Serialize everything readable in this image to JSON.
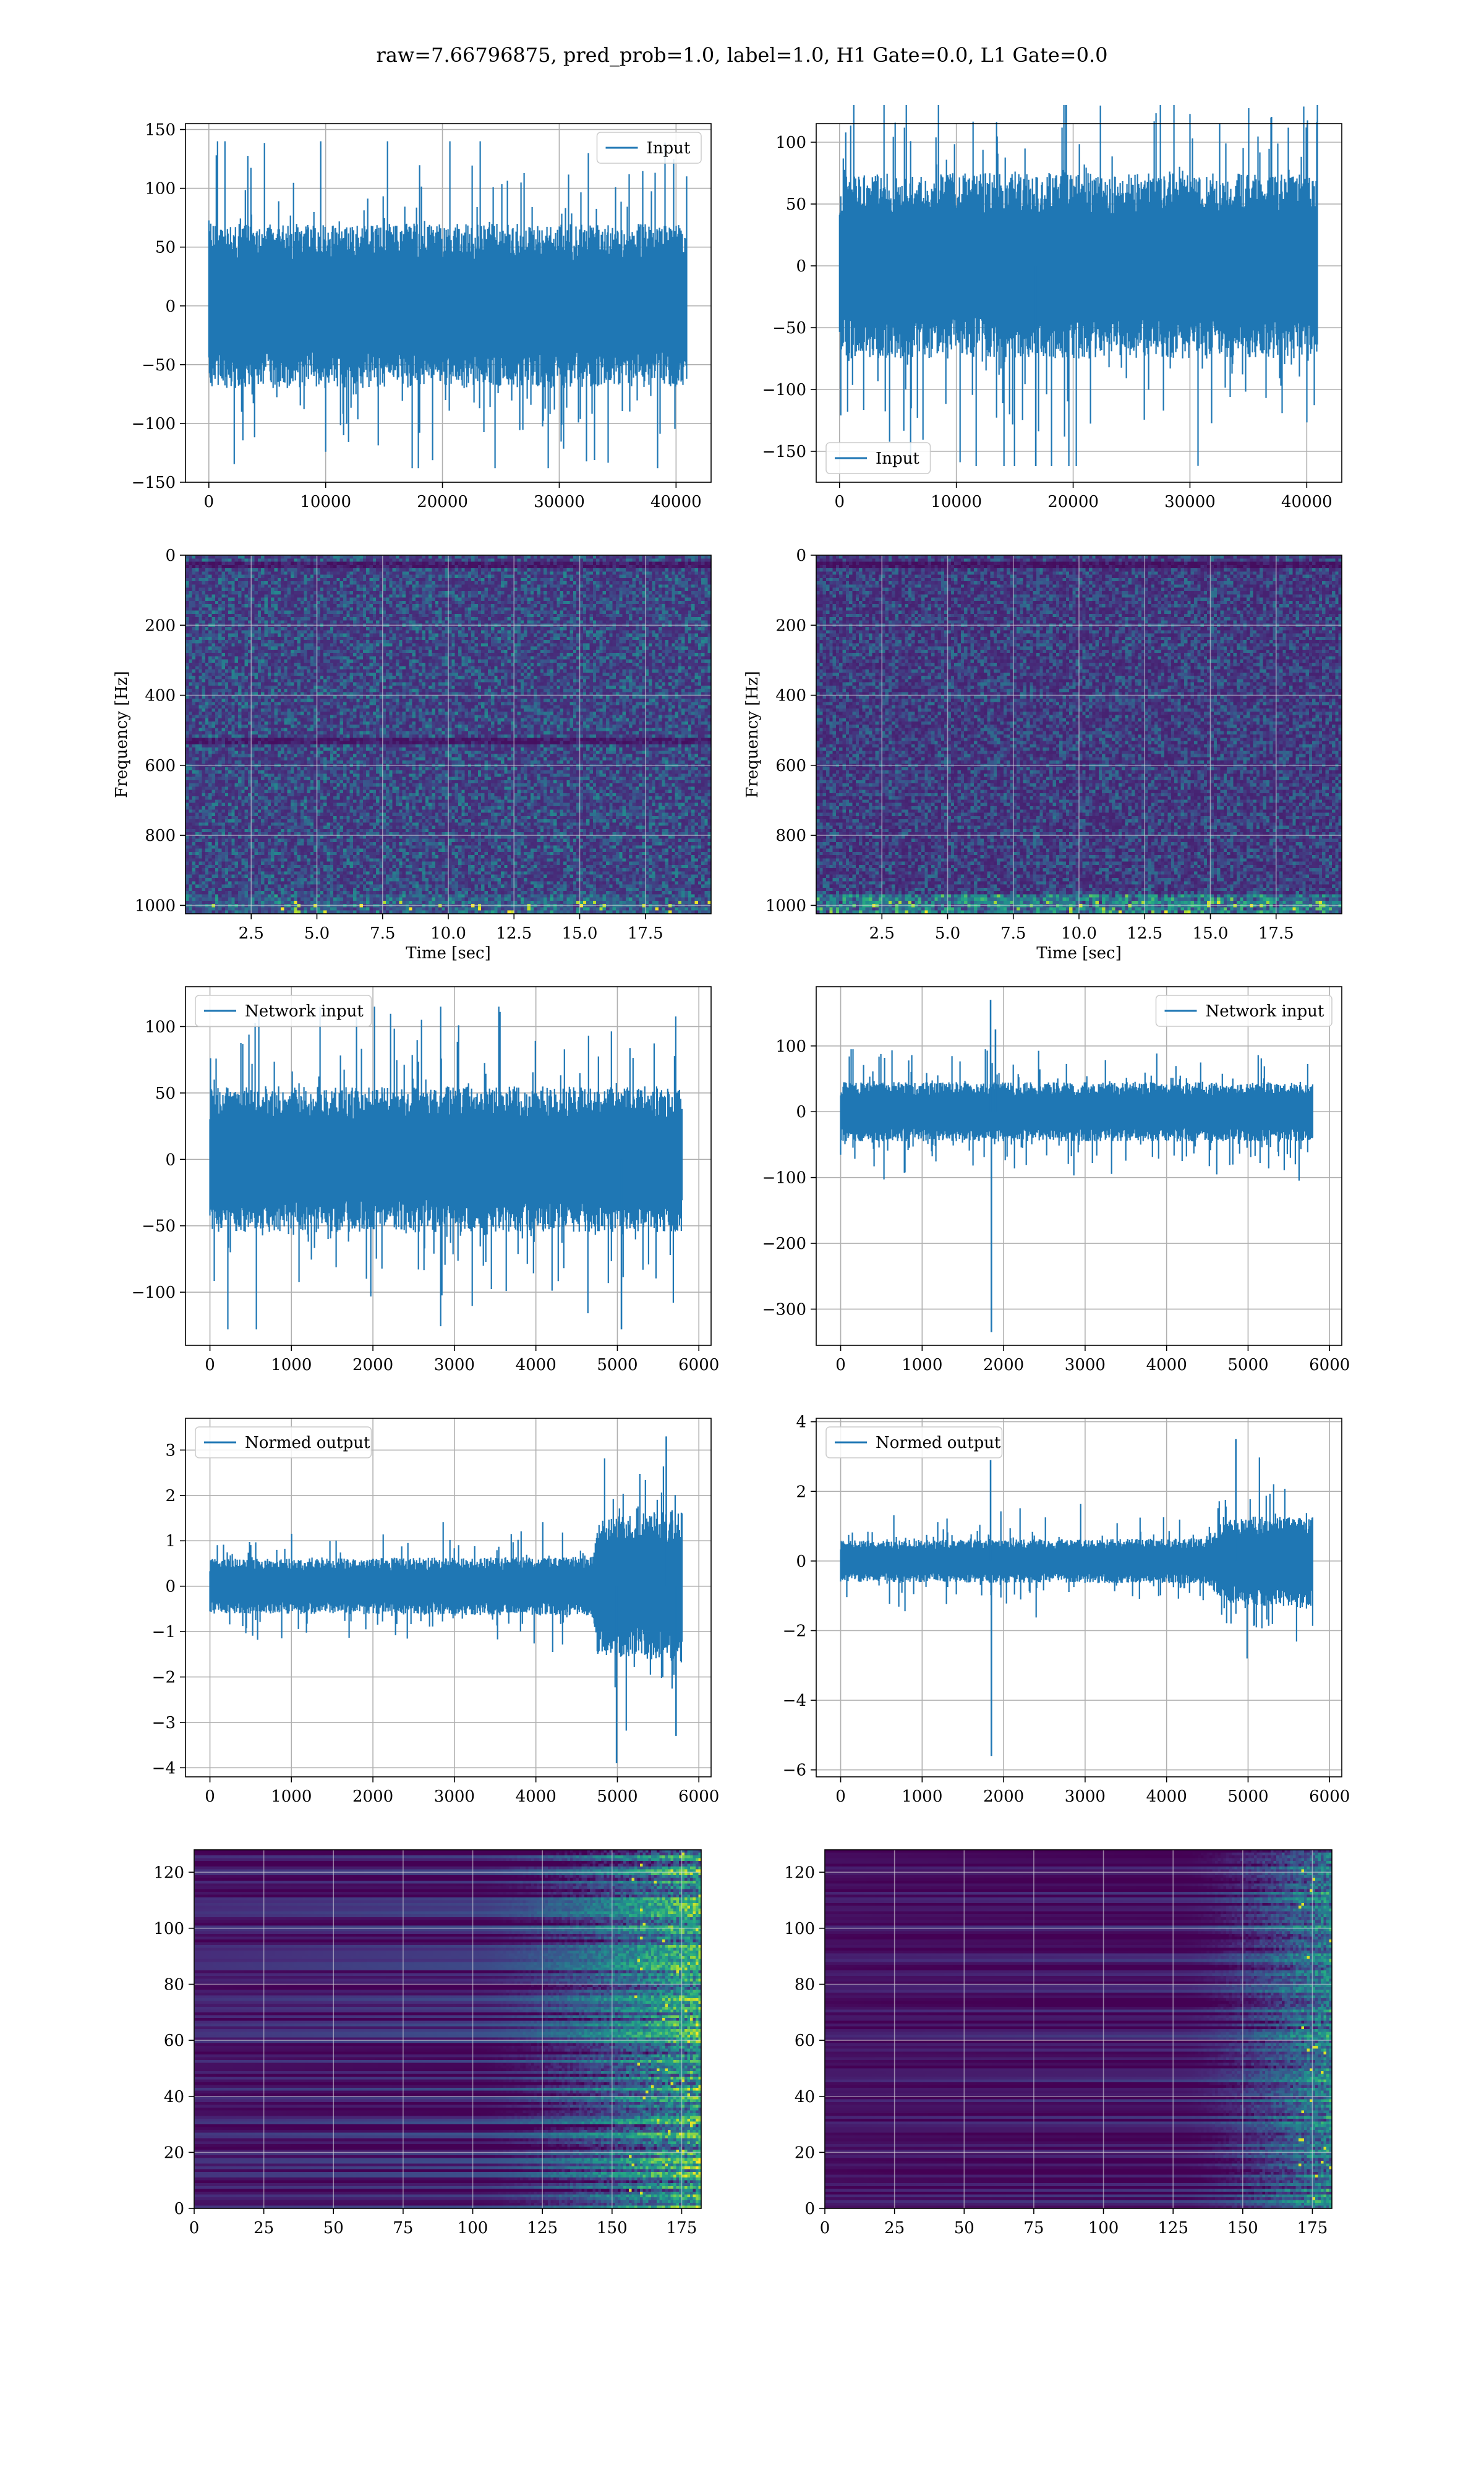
{
  "figure": {
    "suptitle": "raw=7.66796875, pred_prob=1.0, label=1.0, H1 Gate=0.0, L1 Gate=0.0"
  },
  "colors": {
    "line": "#1f77b4",
    "grid": "#b0b0b0",
    "viridis_low": "#440154",
    "viridis_mid": "#21918c",
    "viridis_high": "#fde725"
  },
  "chart_data": [
    {
      "id": "raw-input-h1",
      "type": "line",
      "row": 0,
      "col": 0,
      "legend": "Input",
      "legend_loc": "upper right",
      "xlim": [
        -2000,
        43000
      ],
      "ylim": [
        -150,
        155
      ],
      "xticks": [
        0,
        10000,
        20000,
        30000,
        40000
      ],
      "yticks": [
        -150,
        -100,
        -50,
        0,
        50,
        100,
        150
      ],
      "xtick_labels": [
        "0",
        "10000",
        "20000",
        "30000",
        "40000"
      ],
      "ytick_labels": [
        "−150",
        "−100",
        "−50",
        "0",
        "50",
        "100",
        "150"
      ],
      "signal": {
        "n": 40960,
        "band": [
          [
            0,
            70
          ],
          [
            40960,
            70
          ]
        ],
        "peak": 140,
        "trough": -138,
        "seed": 11
      },
      "spikes": []
    },
    {
      "id": "raw-input-l1",
      "type": "line",
      "row": 0,
      "col": 1,
      "legend": "Input",
      "legend_loc": "lower left",
      "xlim": [
        -2000,
        43000
      ],
      "ylim": [
        -175,
        115
      ],
      "xticks": [
        0,
        10000,
        20000,
        30000,
        40000
      ],
      "yticks": [
        -150,
        -100,
        -50,
        0,
        50,
        100
      ],
      "xtick_labels": [
        "0",
        "10000",
        "20000",
        "30000",
        "40000"
      ],
      "ytick_labels": [
        "−150",
        "−100",
        "−50",
        "0",
        "50",
        "100"
      ],
      "signal": {
        "n": 40960,
        "band": [
          [
            0,
            75
          ],
          [
            40960,
            75
          ]
        ],
        "peak": 130,
        "trough": -162,
        "seed": 23
      },
      "spikes": [
        [
          16800,
          -162
        ]
      ]
    },
    {
      "id": "spectrogram-h1",
      "type": "heatmap",
      "row": 1,
      "col": 0,
      "xlabel": "Time [sec]",
      "ylabel": "Frequency [Hz]",
      "xlim": [
        0,
        20
      ],
      "ylim": [
        0,
        1024
      ],
      "xticks": [
        2.5,
        5.0,
        7.5,
        10.0,
        12.5,
        15.0,
        17.5
      ],
      "yticks": [
        0,
        200,
        400,
        600,
        800,
        1000
      ],
      "xtick_labels": [
        "2.5",
        "5.0",
        "7.5",
        "10.0",
        "12.5",
        "15.0",
        "17.5"
      ],
      "ytick_labels": [
        "0",
        "200",
        "400",
        "600",
        "800",
        "1000"
      ],
      "colormap": "viridis",
      "texture": {
        "grid": [
          160,
          110
        ],
        "base": 0.12,
        "noise": 0.35,
        "lowfreq_boost": 0.15,
        "dark_rows_hz": [
          500,
          1000
        ],
        "seed": 5
      }
    },
    {
      "id": "spectrogram-l1",
      "type": "heatmap",
      "row": 1,
      "col": 1,
      "xlabel": "Time [sec]",
      "ylabel": "Frequency [Hz]",
      "xlim": [
        0,
        20
      ],
      "ylim": [
        0,
        1024
      ],
      "xticks": [
        2.5,
        5.0,
        7.5,
        10.0,
        12.5,
        15.0,
        17.5
      ],
      "yticks": [
        0,
        200,
        400,
        600,
        800,
        1000
      ],
      "xtick_labels": [
        "2.5",
        "5.0",
        "7.5",
        "10.0",
        "12.5",
        "15.0",
        "17.5"
      ],
      "ytick_labels": [
        "0",
        "200",
        "400",
        "600",
        "800",
        "1000"
      ],
      "colormap": "viridis",
      "texture": {
        "grid": [
          160,
          110
        ],
        "base": 0.1,
        "noise": 0.3,
        "lowfreq_boost": 0.45,
        "dark_rows_hz": [
          1000
        ],
        "seed": 9
      }
    },
    {
      "id": "network-input-h1",
      "type": "line",
      "row": 2,
      "col": 0,
      "legend": "Network input",
      "legend_loc": "upper left",
      "xlim": [
        -300,
        6150
      ],
      "ylim": [
        -140,
        130
      ],
      "xticks": [
        0,
        1000,
        2000,
        3000,
        4000,
        5000,
        6000
      ],
      "yticks": [
        -100,
        -50,
        0,
        50,
        100
      ],
      "xtick_labels": [
        "0",
        "1000",
        "2000",
        "3000",
        "4000",
        "5000",
        "6000"
      ],
      "ytick_labels": [
        "−100",
        "−50",
        "0",
        "50",
        "100"
      ],
      "signal": {
        "n": 5800,
        "band": [
          [
            0,
            55
          ],
          [
            5800,
            55
          ]
        ],
        "peak": 115,
        "trough": -128,
        "seed": 31
      },
      "spikes": [
        [
          5050,
          -128
        ]
      ]
    },
    {
      "id": "network-input-l1",
      "type": "line",
      "row": 2,
      "col": 1,
      "legend": "Network input",
      "legend_loc": "upper right",
      "xlim": [
        -300,
        6150
      ],
      "ylim": [
        -355,
        190
      ],
      "xticks": [
        0,
        1000,
        2000,
        3000,
        4000,
        5000,
        6000
      ],
      "yticks": [
        -300,
        -200,
        -100,
        0,
        100
      ],
      "xtick_labels": [
        "0",
        "1000",
        "2000",
        "3000",
        "4000",
        "5000",
        "6000"
      ],
      "ytick_labels": [
        "−300",
        "−200",
        "−100",
        "0",
        "100"
      ],
      "signal": {
        "n": 5800,
        "band": [
          [
            0,
            45
          ],
          [
            5800,
            45
          ]
        ],
        "peak": 95,
        "trough": -105,
        "seed": 47
      },
      "spikes": [
        [
          1850,
          -335
        ],
        [
          1840,
          170
        ],
        [
          1900,
          125
        ]
      ]
    },
    {
      "id": "normed-output-h1",
      "type": "line",
      "row": 3,
      "col": 0,
      "legend": "Normed output",
      "legend_loc": "upper left",
      "xlim": [
        -300,
        6150
      ],
      "ylim": [
        -4.2,
        3.7
      ],
      "xticks": [
        0,
        1000,
        2000,
        3000,
        4000,
        5000,
        6000
      ],
      "yticks": [
        -4,
        -3,
        -2,
        -1,
        0,
        1,
        2,
        3
      ],
      "xtick_labels": [
        "0",
        "1000",
        "2000",
        "3000",
        "4000",
        "5000",
        "6000"
      ],
      "ytick_labels": [
        "−4",
        "−3",
        "−2",
        "−1",
        "0",
        "1",
        "2",
        "3"
      ],
      "signal": {
        "n": 5800,
        "band": [
          [
            0,
            0.6
          ],
          [
            4700,
            0.65
          ],
          [
            4750,
            1.5
          ],
          [
            5800,
            1.7
          ]
        ],
        "peak": 3.3,
        "trough": -3.9,
        "seed": 53
      },
      "spikes": [
        [
          4990,
          -3.9
        ],
        [
          5600,
          3.3
        ],
        [
          5720,
          -3.3
        ]
      ]
    },
    {
      "id": "normed-output-l1",
      "type": "line",
      "row": 3,
      "col": 1,
      "legend": "Normed output",
      "legend_loc": "upper left",
      "xlim": [
        -300,
        6150
      ],
      "ylim": [
        -6.2,
        4.1
      ],
      "xticks": [
        0,
        1000,
        2000,
        3000,
        4000,
        5000,
        6000
      ],
      "yticks": [
        -6,
        -4,
        -2,
        0,
        2,
        4
      ],
      "xtick_labels": [
        "0",
        "1000",
        "2000",
        "3000",
        "4000",
        "5000",
        "6000"
      ],
      "ytick_labels": [
        "−6",
        "−4",
        "−2",
        "0",
        "2",
        "4"
      ],
      "signal": {
        "n": 5800,
        "band": [
          [
            0,
            0.6
          ],
          [
            4500,
            0.65
          ],
          [
            4700,
            1.2
          ],
          [
            5800,
            1.4
          ]
        ],
        "peak": 3.5,
        "trough": -2.8,
        "seed": 61
      },
      "spikes": [
        [
          1850,
          -5.6
        ],
        [
          1840,
          2.9
        ],
        [
          4850,
          3.5
        ]
      ]
    },
    {
      "id": "feature-map-h1",
      "type": "heatmap",
      "row": 4,
      "col": 0,
      "xlim": [
        0,
        182
      ],
      "ylim": [
        128,
        0
      ],
      "xticks": [
        0,
        25,
        50,
        75,
        100,
        125,
        150,
        175
      ],
      "yticks": [
        0,
        20,
        40,
        60,
        80,
        100,
        120
      ],
      "xtick_labels": [
        "0",
        "25",
        "50",
        "75",
        "100",
        "125",
        "150",
        "175"
      ],
      "ytick_labels": [
        "0",
        "20",
        "40",
        "60",
        "80",
        "100",
        "120"
      ],
      "colormap": "viridis",
      "texture": {
        "grid": [
          182,
          128
        ],
        "base": 0.08,
        "row_stripes": 0.18,
        "ramp_start": 0.55,
        "ramp_gain": 0.75,
        "seed": 71
      }
    },
    {
      "id": "feature-map-l1",
      "type": "heatmap",
      "row": 4,
      "col": 1,
      "xlim": [
        0,
        182
      ],
      "ylim": [
        128,
        0
      ],
      "xticks": [
        0,
        25,
        50,
        75,
        100,
        125,
        150,
        175
      ],
      "yticks": [
        0,
        20,
        40,
        60,
        80,
        100,
        120
      ],
      "xtick_labels": [
        "0",
        "25",
        "50",
        "75",
        "100",
        "125",
        "150",
        "175"
      ],
      "ytick_labels": [
        "0",
        "20",
        "40",
        "60",
        "80",
        "100",
        "120"
      ],
      "colormap": "viridis",
      "texture": {
        "grid": [
          182,
          128
        ],
        "base": 0.06,
        "row_stripes": 0.12,
        "ramp_start": 0.7,
        "ramp_gain": 0.6,
        "seed": 83
      }
    }
  ]
}
